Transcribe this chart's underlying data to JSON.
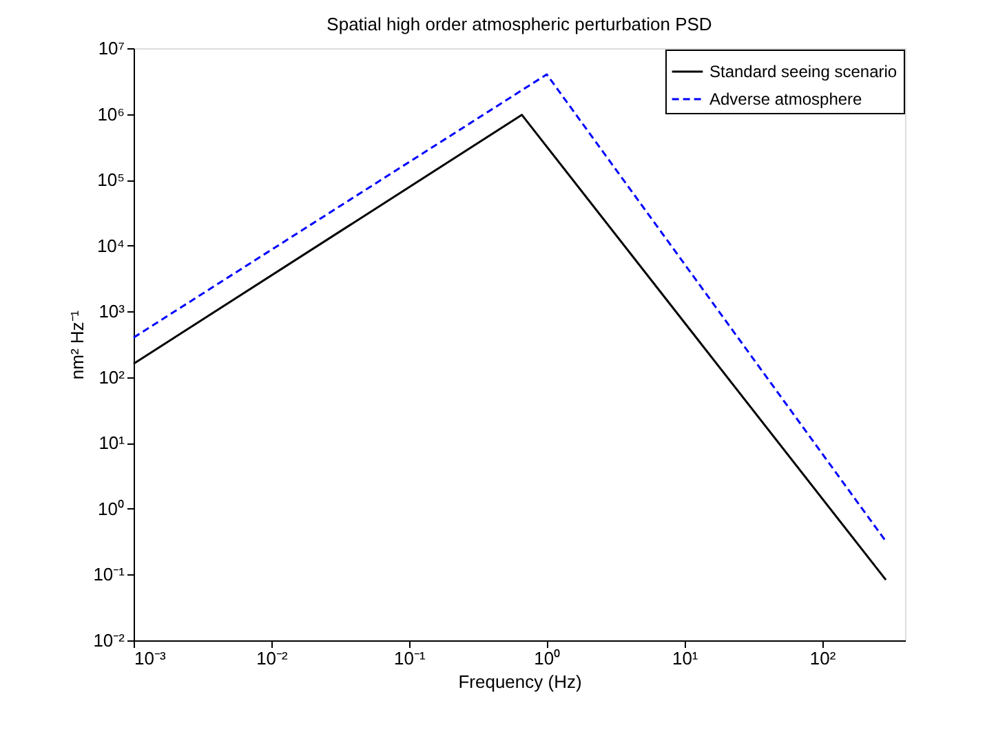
{
  "chart_data": {
    "type": "line",
    "title": "Spatial high order atmospheric perturbation PSD",
    "xlabel": "Frequency (Hz)",
    "ylabel": "nm² Hz⁻¹",
    "log": "xy",
    "grid": false,
    "legend": "top right",
    "marker": "none",
    "xlim": [
      0.001,
      400
    ],
    "ylim": [
      0.01,
      10000000
    ],
    "xticks": [
      {
        "value": 0.001,
        "label": "10⁻³"
      },
      {
        "value": 0.01,
        "label": "10⁻²"
      },
      {
        "value": 0.1,
        "label": "10⁻¹"
      },
      {
        "value": 1,
        "label": "10⁰"
      },
      {
        "value": 10,
        "label": "10¹"
      },
      {
        "value": 100,
        "label": "10²"
      }
    ],
    "yticks": [
      {
        "value": 0.01,
        "label": "10⁻²"
      },
      {
        "value": 0.1,
        "label": "10⁻¹"
      },
      {
        "value": 1,
        "label": "10⁰"
      },
      {
        "value": 10,
        "label": "10¹"
      },
      {
        "value": 100,
        "label": "10²"
      },
      {
        "value": 1000,
        "label": "10³"
      },
      {
        "value": 10000,
        "label": "10⁴"
      },
      {
        "value": 100000,
        "label": "10⁵"
      },
      {
        "value": 1000000,
        "label": "10⁶"
      },
      {
        "value": 10000000,
        "label": "10⁷"
      }
    ],
    "series": [
      {
        "name": "Standard seeing scenario",
        "color": "#000000",
        "line_style": "solid",
        "x": [
          0.001,
          0.66,
          290
        ],
        "values": [
          160,
          970000,
          0.083
        ]
      },
      {
        "name": "Adverse atmosphere",
        "color": "#0000ff",
        "line_style": "dashed",
        "x": [
          0.001,
          1.0,
          290
        ],
        "values": [
          400,
          4000000,
          0.32
        ]
      }
    ]
  }
}
